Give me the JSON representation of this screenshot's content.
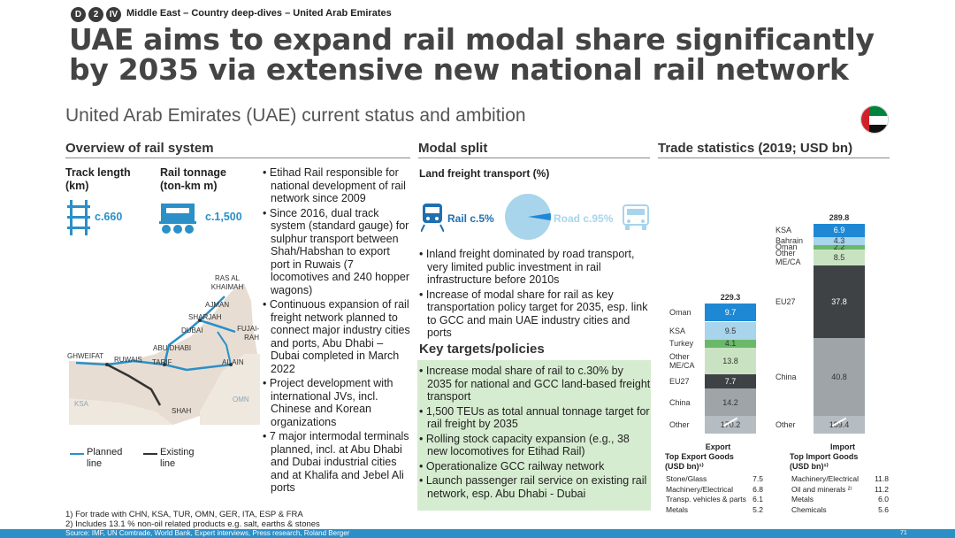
{
  "breadcrumb": {
    "badges": [
      "D",
      "2",
      "IV"
    ],
    "text": "Middle East – Country deep-dives – United Arab Emirates"
  },
  "title": "UAE aims to expand rail modal share significantly by 2035 via extensive new national rail network",
  "subtitle": "United Arab Emirates (UAE) current status and ambition",
  "sections": {
    "overview": "Overview of rail system",
    "modal": "Modal split",
    "trade": "Trade statistics (2019; USD bn)"
  },
  "overview": {
    "track_label": "Track length (km)",
    "track_value": "c.660",
    "tonnage_label": "Rail tonnage (ton-km m)",
    "tonnage_value": "c.1,500",
    "bullets": [
      "Etihad Rail responsible for national development of rail network since 2009",
      "Since 2016, dual track system (standard gauge) for sulphur transport between Shah/Habshan to export port in Ruwais (7 locomotives and 240 hopper wagons)",
      "Continuous expansion of rail freight network planned to connect major industry cities and ports, Abu Dhabi – Dubai completed in March 2022",
      "Project development with international JVs, incl. Chinese and Korean organizations",
      "7 major intermodal terminals planned, incl. at Abu Dhabi and Dubai industrial cities and at Khalifa and Jebel Ali ports"
    ],
    "map_labels": {
      "ras": "RAS AL KHAIMAH",
      "ajman": "AJMAN",
      "sharjah": "SHARJAH",
      "dubai": "DUBAI",
      "fujairah": "FUJAI-RAH",
      "abudhabi": "ABU DHABI",
      "ghweifat": "GHWEIFAT",
      "ruwais": "RUWAIS",
      "tarif": "TARIF",
      "alain": "AL AIN",
      "ksa": "KSA",
      "omn": "OMN",
      "shah": "SHAH"
    },
    "legend": {
      "planned": "Planned line",
      "existing": "Existing line"
    }
  },
  "modal": {
    "land_title": "Land freight transport (%)",
    "rail": "Rail c.5%",
    "road": "Road c.95%",
    "rail_share": 5,
    "bullets": [
      "Inland freight dominated by road transport, very limited public investment in rail infrastructure before 2010s",
      "Increase of modal share for rail as key transportation policy target for 2035, esp. link to GCC and main UAE industry cities and ports"
    ],
    "targets_title": "Key targets/policies",
    "targets": [
      "Increase modal share of rail to c.30% by 2035 for national and GCC land-based freight transport",
      "1,500 TEUs as total annual tonnage target for rail freight by 2035",
      "Rolling stock capacity expansion (e.g., 38 new locomotives for Etihad Rail)",
      "Operationalize GCC railway network",
      "Launch passenger rail service on existing rail network, esp. Abu Dhabi - Dubai"
    ]
  },
  "chart_data": {
    "type": "bar",
    "categories": [
      "Export",
      "Import"
    ],
    "totals": [
      229.3,
      289.8
    ],
    "export_segments": [
      {
        "name": "Other",
        "value": 170.2,
        "color": "#b5bcc2"
      },
      {
        "name": "China",
        "value": 14.2,
        "color": "#9ea4a8"
      },
      {
        "name": "EU27",
        "value": 7.7,
        "color": "#3e4245"
      },
      {
        "name": "Other ME/CA",
        "value": 13.8,
        "color": "#c9e3c2"
      },
      {
        "name": "Turkey",
        "value": 4.1,
        "color": "#6bb86a"
      },
      {
        "name": "KSA",
        "value": 9.5,
        "color": "#a8d4ec"
      },
      {
        "name": "Oman",
        "value": 9.7,
        "color": "#1f88d4"
      }
    ],
    "import_segments": [
      {
        "name": "Other",
        "value": 189.4,
        "color": "#b5bcc2"
      },
      {
        "name": "China",
        "value": 40.8,
        "color": "#9ea4a8"
      },
      {
        "name": "EU27",
        "value": 37.8,
        "color": "#3e4245"
      },
      {
        "name": "Other ME/CA",
        "value": 8.5,
        "color": "#c9e3c2"
      },
      {
        "name": "Oman",
        "value": 2.2,
        "color": "#6bb86a"
      },
      {
        "name": "Bahrain",
        "value": 4.3,
        "color": "#a8d4ec"
      },
      {
        "name": "KSA",
        "value": 6.9,
        "color": "#1f88d4"
      }
    ],
    "export_goods": {
      "title": "Export Top Export Goods (USD bn)¹⁾",
      "rows": [
        [
          "Stone/Glass",
          "7.5"
        ],
        [
          "Machinery/Electrical",
          "6.8"
        ],
        [
          "Transp. vehicles & parts",
          "6.1"
        ],
        [
          "Metals",
          "5.2"
        ]
      ]
    },
    "import_goods": {
      "title": "Import Top Import Goods (USD bn)¹⁾",
      "rows": [
        [
          "Machinery/Electrical",
          "11.8"
        ],
        [
          "Oil and minerals ²⁾",
          "11.2"
        ],
        [
          "Metals",
          "6.0"
        ],
        [
          "Chemicals",
          "5.6"
        ]
      ]
    }
  },
  "footnotes": [
    "1) For trade with CHN, KSA, TUR, OMN, GER, ITA, ESP & FRA",
    "2) Includes 13.1 % non-oil related products e.g. salt, earths & stones"
  ],
  "source": "Source: IMF, UN Comtrade, World Bank, Expert interviews, Press research, Roland Berger",
  "page_number": "71"
}
